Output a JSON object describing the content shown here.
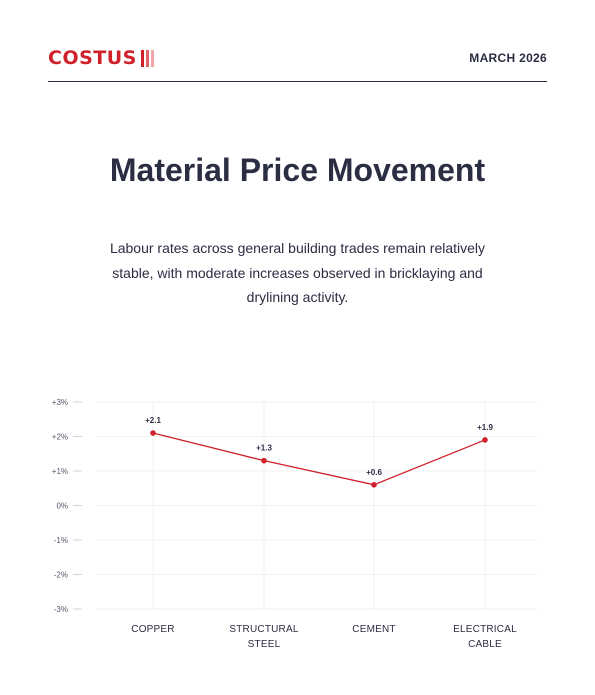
{
  "header": {
    "brand": "COSTUS",
    "date": "MARCH 2026"
  },
  "title": "Material Price Movement",
  "description": "Labour rates across general building trades remain relatively stable, with moderate increases observed in bricklaying and drylining activity.",
  "colors": {
    "accent": "#d0202a",
    "text": "#2b2d42",
    "grid": "#f1f1f3",
    "logo_bars": [
      "#d0202a",
      "#e0636a",
      "#f0a5a9"
    ]
  },
  "chart_data": {
    "type": "line",
    "categories": [
      "COPPER",
      "STRUCTURAL STEEL",
      "CEMENT",
      "ELECTRICAL CABLE"
    ],
    "category_lines": [
      [
        "COPPER"
      ],
      [
        "STRUCTURAL",
        "STEEL"
      ],
      [
        "CEMENT"
      ],
      [
        "ELECTRICAL",
        "CABLE"
      ]
    ],
    "values": [
      2.1,
      1.3,
      0.6,
      1.9
    ],
    "data_labels": [
      "+2.1",
      "+1.3",
      "+0.6",
      "+1.9"
    ],
    "ylim": [
      -3,
      3
    ],
    "yticks": [
      3,
      2,
      1,
      0,
      -1,
      -2,
      -3
    ],
    "ytick_labels": [
      "+3%",
      "+2%",
      "+1%",
      "0%",
      "-1%",
      "-2%",
      "-3%"
    ],
    "grid": true,
    "legend": "none"
  }
}
